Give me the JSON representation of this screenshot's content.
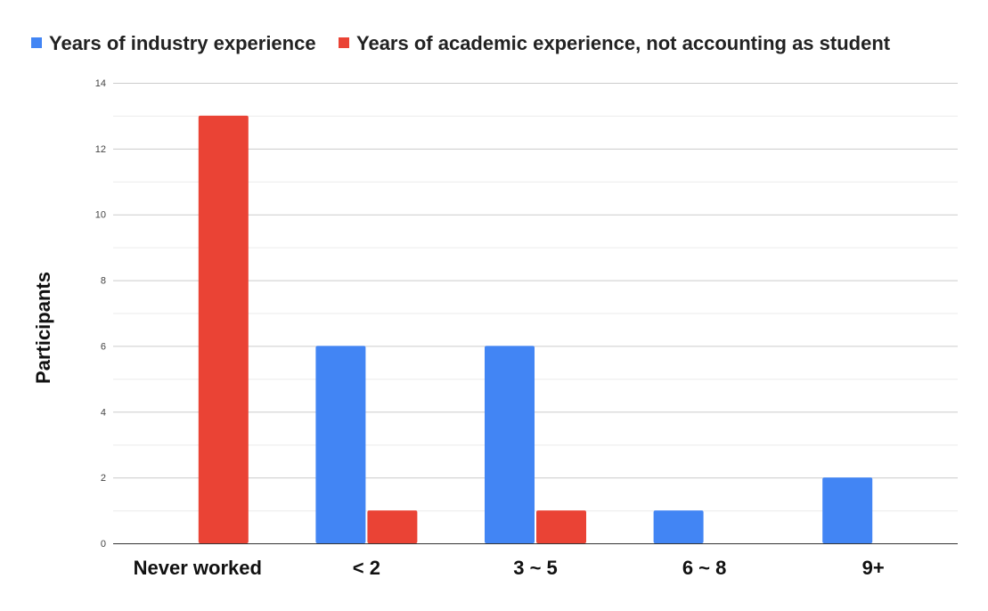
{
  "chart_data": {
    "type": "bar",
    "title": "",
    "xlabel": "",
    "ylabel": "Participants",
    "categories": [
      "Never worked",
      "< 2",
      "3 ~ 5",
      "6 ~ 8",
      "9+"
    ],
    "series": [
      {
        "name": "Years of industry experience",
        "color": "#4285f4",
        "values": [
          0,
          6,
          6,
          1,
          2
        ]
      },
      {
        "name": "Years of academic experience, not accounting as student",
        "color": "#ea4335",
        "values": [
          13,
          1,
          1,
          0,
          0
        ]
      }
    ],
    "ylim": [
      0,
      14
    ],
    "yticks": [
      0,
      2,
      4,
      6,
      8,
      10,
      12,
      14
    ],
    "minor_gridlines": true,
    "legend_position": "top-left"
  }
}
